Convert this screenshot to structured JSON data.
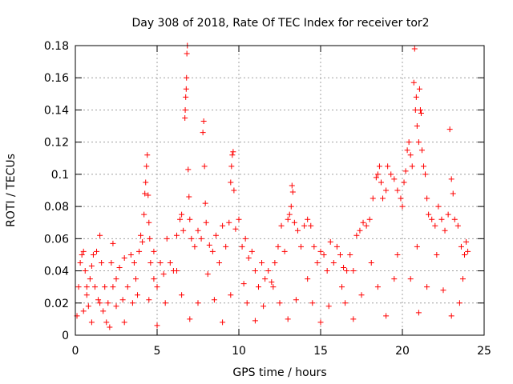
{
  "chart_data": {
    "type": "scatter",
    "title": "Day 308 of 2018, Rate Of TEC Index for receiver tor2",
    "xlabel": "GPS time / hours",
    "ylabel": "ROTI / TECUs",
    "xlim": [
      0,
      25
    ],
    "ylim": [
      0,
      0.18
    ],
    "x_ticks": [
      0,
      5,
      10,
      15,
      20,
      25
    ],
    "x_tick_labels": [
      "0",
      "5",
      "10",
      "15",
      "20",
      "25"
    ],
    "y_ticks": [
      0,
      0.02,
      0.04,
      0.06,
      0.08,
      0.1,
      0.12,
      0.14,
      0.16,
      0.18
    ],
    "y_tick_labels": [
      "0",
      "0.02",
      "0.04",
      "0.06",
      "0.08",
      "0.1",
      "0.12",
      "0.14",
      "0.16",
      "0.18"
    ],
    "grid": true,
    "marker": "+",
    "color": "#ff0000",
    "series": [
      {
        "name": "tor2",
        "points": [
          [
            0.1,
            0.012
          ],
          [
            0.2,
            0.03
          ],
          [
            0.3,
            0.045
          ],
          [
            0.4,
            0.05
          ],
          [
            0.5,
            0.052
          ],
          [
            0.6,
            0.04
          ],
          [
            0.7,
            0.025
          ],
          [
            0.8,
            0.018
          ],
          [
            0.9,
            0.035
          ],
          [
            1.0,
            0.043
          ],
          [
            1.1,
            0.05
          ],
          [
            1.2,
            0.03
          ],
          [
            1.3,
            0.052
          ],
          [
            1.4,
            0.022
          ],
          [
            1.5,
            0.062
          ],
          [
            1.6,
            0.045
          ],
          [
            1.7,
            0.015
          ],
          [
            1.8,
            0.03
          ],
          [
            1.9,
            0.008
          ],
          [
            2.0,
            0.02
          ],
          [
            2.1,
            0.005
          ],
          [
            2.2,
            0.045
          ],
          [
            2.3,
            0.057
          ],
          [
            2.5,
            0.035
          ],
          [
            2.7,
            0.042
          ],
          [
            2.9,
            0.022
          ],
          [
            3.0,
            0.048
          ],
          [
            3.2,
            0.03
          ],
          [
            3.4,
            0.05
          ],
          [
            3.6,
            0.045
          ],
          [
            3.7,
            0.035
          ],
          [
            3.8,
            0.025
          ],
          [
            3.9,
            0.052
          ],
          [
            4.0,
            0.062
          ],
          [
            4.1,
            0.058
          ],
          [
            4.2,
            0.075
          ],
          [
            4.25,
            0.088
          ],
          [
            4.3,
            0.095
          ],
          [
            4.35,
            0.105
          ],
          [
            4.4,
            0.112
          ],
          [
            4.45,
            0.087
          ],
          [
            4.5,
            0.07
          ],
          [
            4.55,
            0.06
          ],
          [
            4.6,
            0.045
          ],
          [
            4.8,
            0.052
          ],
          [
            5.0,
            0.03
          ],
          [
            5.2,
            0.045
          ],
          [
            5.4,
            0.038
          ],
          [
            5.6,
            0.06
          ],
          [
            5.8,
            0.045
          ],
          [
            6.0,
            0.04
          ],
          [
            6.2,
            0.062
          ],
          [
            6.4,
            0.072
          ],
          [
            6.5,
            0.075
          ],
          [
            6.6,
            0.065
          ],
          [
            6.7,
            0.135
          ],
          [
            6.72,
            0.14
          ],
          [
            6.75,
            0.148
          ],
          [
            6.78,
            0.153
          ],
          [
            6.8,
            0.16
          ],
          [
            6.82,
            0.175
          ],
          [
            6.85,
            0.18
          ],
          [
            6.9,
            0.103
          ],
          [
            6.95,
            0.086
          ],
          [
            7.0,
            0.072
          ],
          [
            7.1,
            0.06
          ],
          [
            7.3,
            0.055
          ],
          [
            7.5,
            0.065
          ],
          [
            7.7,
            0.06
          ],
          [
            7.8,
            0.126
          ],
          [
            7.85,
            0.133
          ],
          [
            7.9,
            0.105
          ],
          [
            7.95,
            0.082
          ],
          [
            8.0,
            0.07
          ],
          [
            8.2,
            0.056
          ],
          [
            8.4,
            0.052
          ],
          [
            8.6,
            0.062
          ],
          [
            8.8,
            0.045
          ],
          [
            9.0,
            0.068
          ],
          [
            9.2,
            0.055
          ],
          [
            9.4,
            0.07
          ],
          [
            9.5,
            0.095
          ],
          [
            9.55,
            0.105
          ],
          [
            9.6,
            0.112
          ],
          [
            9.65,
            0.114
          ],
          [
            9.7,
            0.09
          ],
          [
            9.8,
            0.066
          ],
          [
            10.0,
            0.072
          ],
          [
            10.2,
            0.055
          ],
          [
            10.4,
            0.06
          ],
          [
            10.6,
            0.048
          ],
          [
            10.8,
            0.052
          ],
          [
            11.0,
            0.04
          ],
          [
            11.2,
            0.03
          ],
          [
            11.4,
            0.045
          ],
          [
            11.6,
            0.035
          ],
          [
            11.8,
            0.04
          ],
          [
            12.0,
            0.033
          ],
          [
            12.2,
            0.045
          ],
          [
            12.4,
            0.055
          ],
          [
            12.6,
            0.068
          ],
          [
            12.8,
            0.052
          ],
          [
            13.0,
            0.072
          ],
          [
            13.1,
            0.075
          ],
          [
            13.2,
            0.08
          ],
          [
            13.25,
            0.093
          ],
          [
            13.3,
            0.089
          ],
          [
            13.4,
            0.07
          ],
          [
            13.6,
            0.065
          ],
          [
            13.8,
            0.055
          ],
          [
            14.0,
            0.068
          ],
          [
            14.2,
            0.072
          ],
          [
            14.4,
            0.068
          ],
          [
            14.6,
            0.055
          ],
          [
            14.8,
            0.045
          ],
          [
            15.0,
            0.052
          ],
          [
            15.2,
            0.05
          ],
          [
            15.4,
            0.04
          ],
          [
            15.6,
            0.058
          ],
          [
            15.8,
            0.045
          ],
          [
            16.0,
            0.055
          ],
          [
            16.2,
            0.05
          ],
          [
            16.4,
            0.042
          ],
          [
            16.6,
            0.04
          ],
          [
            16.8,
            0.05
          ],
          [
            17.0,
            0.04
          ],
          [
            17.2,
            0.062
          ],
          [
            17.4,
            0.065
          ],
          [
            17.6,
            0.07
          ],
          [
            17.8,
            0.068
          ],
          [
            18.0,
            0.072
          ],
          [
            18.2,
            0.085
          ],
          [
            18.4,
            0.098
          ],
          [
            18.5,
            0.1
          ],
          [
            18.6,
            0.105
          ],
          [
            18.7,
            0.095
          ],
          [
            18.8,
            0.085
          ],
          [
            19.0,
            0.09
          ],
          [
            19.1,
            0.105
          ],
          [
            19.3,
            0.1
          ],
          [
            19.5,
            0.097
          ],
          [
            19.7,
            0.09
          ],
          [
            19.9,
            0.085
          ],
          [
            20.0,
            0.08
          ],
          [
            20.1,
            0.095
          ],
          [
            20.2,
            0.102
          ],
          [
            20.3,
            0.115
          ],
          [
            20.4,
            0.12
          ],
          [
            20.5,
            0.112
          ],
          [
            20.6,
            0.105
          ],
          [
            20.7,
            0.157
          ],
          [
            20.75,
            0.178
          ],
          [
            20.8,
            0.14
          ],
          [
            20.85,
            0.148
          ],
          [
            20.9,
            0.13
          ],
          [
            21.0,
            0.12
          ],
          [
            21.05,
            0.153
          ],
          [
            21.1,
            0.14
          ],
          [
            21.15,
            0.138
          ],
          [
            21.2,
            0.115
          ],
          [
            21.3,
            0.105
          ],
          [
            21.4,
            0.1
          ],
          [
            21.5,
            0.085
          ],
          [
            21.6,
            0.075
          ],
          [
            21.8,
            0.072
          ],
          [
            22.0,
            0.068
          ],
          [
            22.2,
            0.08
          ],
          [
            22.4,
            0.072
          ],
          [
            22.6,
            0.065
          ],
          [
            22.8,
            0.075
          ],
          [
            22.9,
            0.128
          ],
          [
            23.0,
            0.097
          ],
          [
            23.1,
            0.088
          ],
          [
            23.2,
            0.072
          ],
          [
            23.4,
            0.068
          ],
          [
            23.6,
            0.055
          ],
          [
            23.8,
            0.05
          ],
          [
            23.9,
            0.058
          ],
          [
            24.0,
            0.052
          ],
          [
            0.5,
            0.015
          ],
          [
            1.5,
            0.02
          ],
          [
            2.5,
            0.018
          ],
          [
            3.5,
            0.02
          ],
          [
            4.5,
            0.022
          ],
          [
            5.5,
            0.02
          ],
          [
            6.5,
            0.025
          ],
          [
            7.5,
            0.02
          ],
          [
            8.5,
            0.022
          ],
          [
            9.5,
            0.025
          ],
          [
            10.5,
            0.02
          ],
          [
            11.5,
            0.018
          ],
          [
            12.5,
            0.02
          ],
          [
            13.5,
            0.022
          ],
          [
            14.5,
            0.02
          ],
          [
            15.5,
            0.018
          ],
          [
            16.5,
            0.02
          ],
          [
            17.5,
            0.025
          ],
          [
            18.5,
            0.03
          ],
          [
            19.5,
            0.035
          ],
          [
            20.5,
            0.035
          ],
          [
            21.5,
            0.03
          ],
          [
            22.5,
            0.028
          ],
          [
            23.5,
            0.02
          ],
          [
            1.0,
            0.008
          ],
          [
            3.0,
            0.008
          ],
          [
            5.0,
            0.006
          ],
          [
            7.0,
            0.01
          ],
          [
            9.0,
            0.008
          ],
          [
            11.0,
            0.009
          ],
          [
            13.0,
            0.01
          ],
          [
            15.0,
            0.008
          ],
          [
            17.0,
            0.01
          ],
          [
            19.0,
            0.012
          ],
          [
            21.0,
            0.014
          ],
          [
            23.0,
            0.012
          ],
          [
            0.7,
            0.03
          ],
          [
            2.3,
            0.03
          ],
          [
            4.8,
            0.035
          ],
          [
            6.2,
            0.04
          ],
          [
            8.1,
            0.038
          ],
          [
            10.3,
            0.032
          ],
          [
            12.1,
            0.03
          ],
          [
            14.2,
            0.035
          ],
          [
            16.3,
            0.03
          ],
          [
            18.1,
            0.045
          ],
          [
            19.7,
            0.05
          ],
          [
            20.9,
            0.055
          ],
          [
            22.1,
            0.05
          ],
          [
            23.7,
            0.035
          ]
        ]
      }
    ]
  }
}
